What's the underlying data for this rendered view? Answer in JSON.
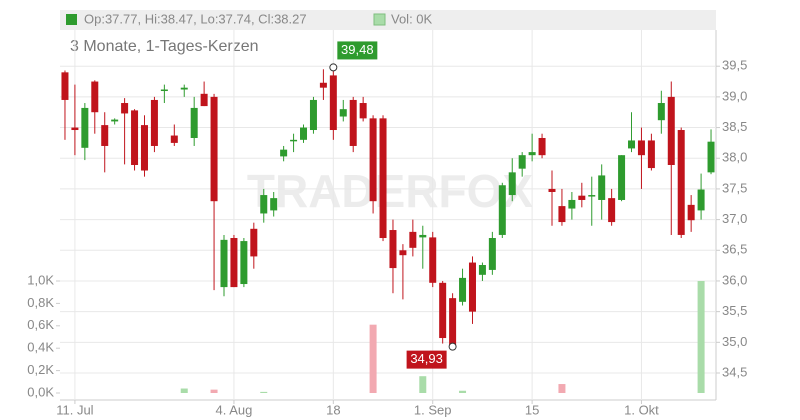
{
  "chart_data": {
    "type": "candlestick",
    "header": "Op:37.77, Hi:38.47, Lo:37.74, Cl:38.27",
    "volume_header": "Vol: 0K",
    "subtitle": "3 Monate, 1-Tages-Kerzen",
    "watermark": "TRADERFOX",
    "high_label": "39,48",
    "low_label": "34,93",
    "categories": [
      null,
      "11. Jul",
      null,
      null,
      null,
      null,
      null,
      null,
      null,
      null,
      null,
      null,
      null,
      null,
      null,
      null,
      null,
      "4. Aug",
      null,
      null,
      null,
      null,
      null,
      null,
      null,
      null,
      null,
      "18",
      null,
      null,
      null,
      null,
      null,
      null,
      null,
      null,
      null,
      "1. Sep",
      null,
      null,
      null,
      null,
      null,
      null,
      null,
      null,
      null,
      "15",
      null,
      null,
      null,
      null,
      null,
      null,
      null,
      null,
      null,
      null,
      "1. Okt",
      null,
      null,
      null,
      null,
      null,
      null,
      null
    ],
    "open": [
      39.4,
      38.5,
      38.17,
      39.25,
      38.54,
      38.6,
      38.9,
      38.78,
      38.54,
      38.95,
      39.1,
      38.37,
      39.12,
      38.33,
      39.05,
      39.0,
      35.9,
      36.7,
      35.95,
      36.85,
      37.1,
      37.15,
      38.03,
      38.28,
      38.3,
      38.46,
      39.23,
      39.35,
      38.68,
      38.95,
      38.9,
      38.65,
      38.65,
      36.83,
      36.5,
      36.8,
      36.71,
      36.71,
      35.97,
      35.72,
      35.66,
      36.3,
      36.1,
      36.18,
      36.75,
      37.4,
      37.83,
      38.05,
      38.33,
      37.5,
      37.22,
      37.18,
      37.39,
      37.38,
      37.32,
      37.35,
      37.32,
      38.16,
      38.29,
      38.29,
      38.62,
      39.0,
      38.46,
      37.24,
      37.15,
      37.77
    ],
    "high": [
      39.43,
      39.2,
      38.9,
      39.27,
      38.75,
      38.65,
      38.98,
      38.8,
      38.7,
      39.0,
      39.2,
      38.55,
      39.2,
      39.0,
      39.25,
      39.05,
      36.75,
      36.75,
      36.7,
      36.95,
      37.5,
      37.45,
      38.2,
      38.4,
      38.55,
      39.0,
      39.45,
      39.48,
      38.95,
      39.0,
      39.0,
      38.7,
      38.7,
      37.0,
      36.6,
      37.0,
      36.9,
      36.8,
      36.0,
      35.8,
      36.2,
      36.4,
      36.3,
      36.8,
      37.6,
      38.0,
      38.1,
      38.4,
      38.4,
      37.8,
      37.5,
      37.45,
      37.6,
      37.7,
      37.9,
      37.5,
      38.05,
      38.75,
      38.5,
      38.4,
      39.1,
      39.25,
      38.5,
      37.4,
      37.75,
      38.47
    ],
    "low": [
      38.3,
      38.05,
      37.97,
      38.4,
      37.77,
      38.55,
      37.9,
      37.8,
      37.7,
      38.1,
      38.9,
      38.2,
      39.0,
      38.2,
      38.85,
      35.85,
      35.75,
      35.9,
      35.9,
      36.2,
      36.95,
      37.05,
      37.95,
      38.1,
      38.25,
      38.4,
      38.95,
      38.3,
      38.6,
      38.1,
      38.6,
      37.1,
      36.65,
      35.8,
      35.7,
      36.4,
      36.2,
      35.9,
      34.98,
      34.93,
      35.6,
      35.3,
      36.0,
      36.1,
      36.7,
      37.3,
      37.7,
      37.95,
      38.0,
      36.9,
      36.9,
      37.0,
      37.2,
      36.9,
      37.0,
      36.9,
      37.3,
      38.1,
      37.5,
      37.8,
      38.4,
      36.75,
      36.7,
      36.8,
      37.0,
      37.74
    ],
    "close": [
      38.95,
      38.46,
      38.82,
      38.75,
      38.2,
      38.63,
      38.73,
      37.89,
      37.8,
      38.2,
      39.12,
      38.25,
      39.15,
      38.82,
      38.85,
      37.3,
      36.67,
      35.9,
      36.65,
      36.4,
      37.4,
      37.35,
      38.14,
      38.3,
      38.5,
      38.95,
      39.15,
      38.46,
      38.8,
      38.2,
      38.65,
      37.3,
      36.7,
      36.21,
      36.42,
      36.54,
      36.75,
      35.97,
      35.07,
      34.96,
      36.05,
      35.5,
      36.26,
      36.7,
      37.56,
      37.77,
      38.05,
      38.1,
      38.05,
      37.45,
      36.96,
      37.32,
      37.32,
      37.4,
      37.72,
      36.96,
      38.05,
      38.29,
      38.05,
      37.84,
      38.9,
      37.89,
      36.75,
      36.99,
      37.49,
      38.27
    ],
    "volume": [
      0,
      0,
      0,
      0,
      0,
      0,
      0,
      0,
      0,
      0,
      0,
      0,
      0.04,
      0,
      0,
      0.03,
      0,
      0,
      0,
      0,
      0.01,
      0,
      0,
      0,
      0,
      0,
      0,
      0,
      0,
      0,
      0,
      0.61,
      0,
      0,
      0,
      0,
      0.15,
      0,
      0,
      0,
      0.02,
      0,
      0,
      0,
      0,
      0,
      0,
      0,
      0,
      0,
      0.08,
      0,
      0,
      0,
      0,
      0,
      0,
      0,
      0,
      0,
      0,
      0,
      0,
      0,
      1.0,
      0
    ],
    "up_color": "#2e9b2e",
    "down_color": "#c0141c",
    "volume_up_color": "#a9dca9",
    "volume_down_color": "#f2a9b1",
    "ylim": [
      34.06,
      40.09
    ],
    "yticks": [
      {
        "value": 34.5,
        "label": "34,5"
      },
      {
        "value": 35,
        "label": "35,0"
      },
      {
        "value": 35.5,
        "label": "35,5"
      },
      {
        "value": 36,
        "label": "36,0"
      },
      {
        "value": 36.5,
        "label": "36,5"
      },
      {
        "value": 37,
        "label": "37,0"
      },
      {
        "value": 37.5,
        "label": "37,5"
      },
      {
        "value": 38,
        "label": "38,0"
      },
      {
        "value": 38.5,
        "label": "38,5"
      },
      {
        "value": 39,
        "label": "39,0"
      },
      {
        "value": 39.5,
        "label": "39,5"
      }
    ],
    "y2lim": [
      -0.0625,
      3.241
    ],
    "y2ticks": [
      {
        "value": 0,
        "label": "0,0K"
      },
      {
        "value": 0.2,
        "label": "0,2K"
      },
      {
        "value": 0.4,
        "label": "0,4K"
      },
      {
        "value": 0.6,
        "label": "0,6K"
      },
      {
        "value": 0.8,
        "label": "0,8K"
      },
      {
        "value": 1.0,
        "label": "1,0K"
      }
    ],
    "grid": true
  }
}
